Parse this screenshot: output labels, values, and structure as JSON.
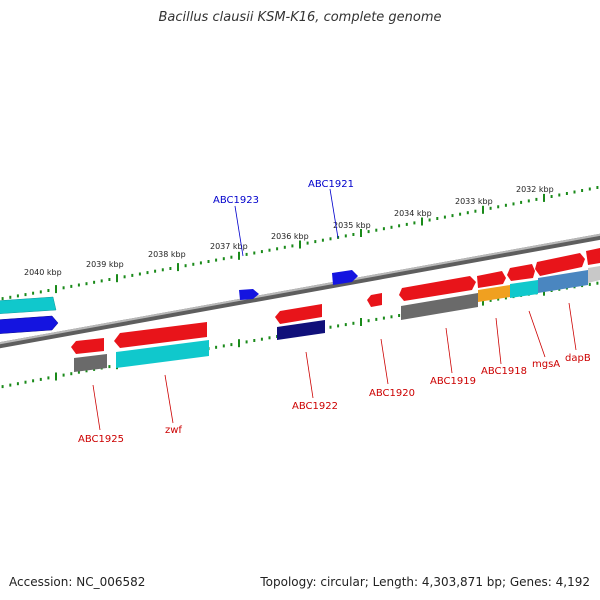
{
  "title": "Bacillus clausii KSM-K16, complete genome",
  "footer": {
    "accession": "Accession: NC_006582",
    "stats": "Topology: circular; Length: 4,303,871 bp; Genes: 4,192"
  },
  "colors": {
    "forward_label": "#0000cc",
    "reverse_label": "#cc0000",
    "tick": "#1a8a1a",
    "backbone": "#7a7a7a",
    "gene_red": "#e8141a",
    "gene_blue": "#1414e0",
    "gene_cyan": "#10c8cc",
    "gene_gray": "#6a6a6a",
    "gene_navy": "#10107a",
    "gene_orange": "#f0a020",
    "gene_steel": "#4a86c0"
  },
  "kbp_ticks": [
    "2040 kbp",
    "2039 kbp",
    "2038 kbp",
    "2037 kbp",
    "2036 kbp",
    "2035 kbp",
    "2034 kbp",
    "2033 kbp",
    "2032 kbp"
  ],
  "forward_labels": [
    "ABC1923",
    "ABC1921"
  ],
  "reverse_labels": [
    "ABC1925",
    "zwf",
    "ABC1922",
    "ABC1920",
    "ABC1919",
    "ABC1918",
    "mgsA",
    "dapB"
  ]
}
